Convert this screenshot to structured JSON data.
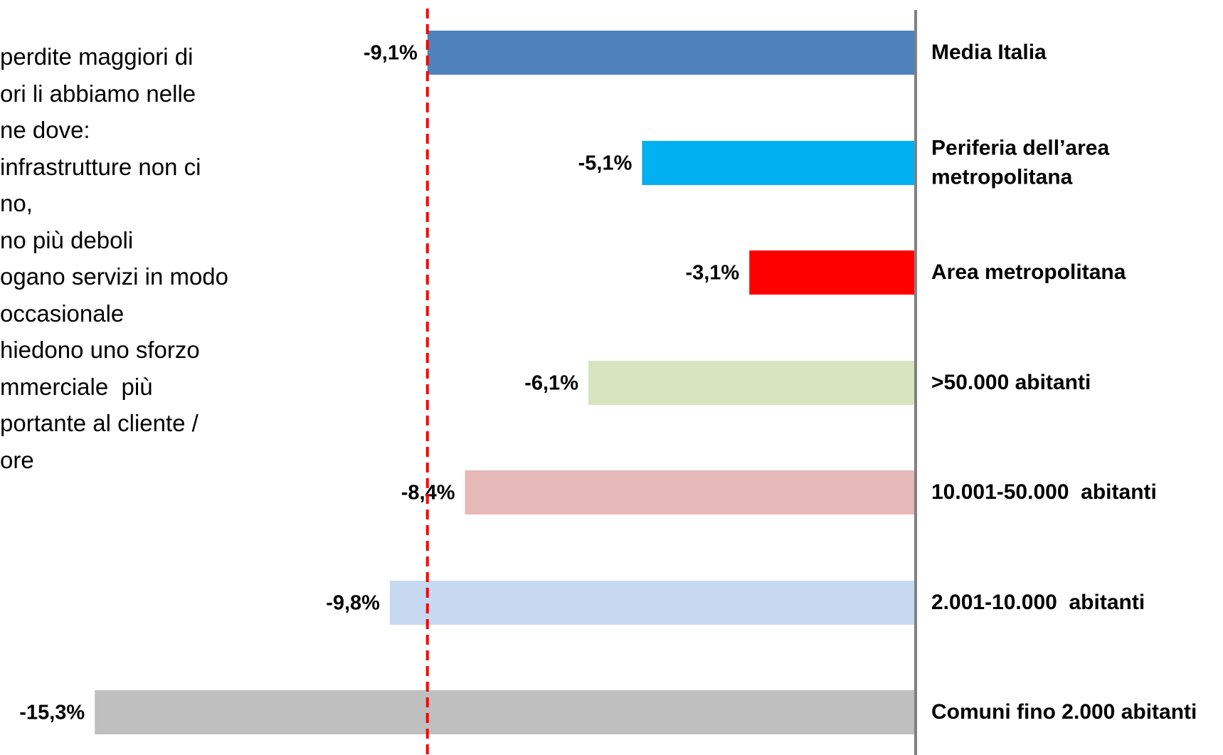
{
  "chart_data": {
    "type": "hbar",
    "annotations": [
      "perdite maggiori di",
      "ori li abbiamo nelle",
      "ne dove:",
      "infrastrutture non ci",
      "no,",
      "no più deboli",
      "ogano servizi in modo",
      "occasionale",
      "hiedono uno sforzo",
      "mmerciale  più",
      "portante al cliente /",
      "ore"
    ],
    "categories": [
      "Media Italia",
      "Periferia dell’area\nmetropolitana",
      "Area metropolitana",
      ">50.000 abitanti",
      "10.001-50.000  abitanti",
      "2.001-10.000  abitanti",
      "Comuni fino 2.000 abitanti"
    ],
    "values": [
      -9.1,
      -5.1,
      -3.1,
      -6.1,
      -8.4,
      -9.8,
      -15.3
    ],
    "value_labels": [
      "-9,1%",
      "-5,1%",
      "-3,1%",
      "-6,1%",
      "-8,4%",
      "-9,8%",
      "-15,3%"
    ],
    "colors": [
      "#4f81bd",
      "#00b0f0",
      "#ff0000",
      "#d7e4bd",
      "#e6b9b8",
      "#c6d9f1",
      "#bfbfbf"
    ],
    "xlim": [
      -17,
      0
    ]
  }
}
